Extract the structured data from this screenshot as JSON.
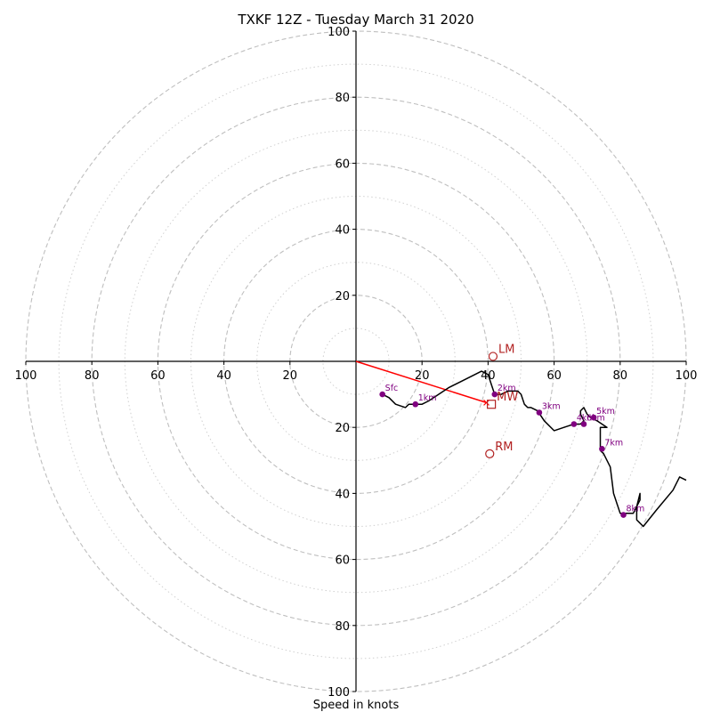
{
  "chart_data": {
    "type": "hodograph",
    "title": "TXKF 12Z - Tuesday March 31 2020",
    "xlabel": "Speed in knots",
    "range": [
      -100,
      100
    ],
    "ring_major": [
      20,
      40,
      60,
      80,
      100
    ],
    "ring_minor": [
      10,
      30,
      50,
      70,
      90
    ],
    "x_ticks": [
      {
        "value": -100,
        "label": "100"
      },
      {
        "value": -80,
        "label": "80"
      },
      {
        "value": -60,
        "label": "60"
      },
      {
        "value": -40,
        "label": "40"
      },
      {
        "value": -20,
        "label": "20"
      },
      {
        "value": 20,
        "label": "20"
      },
      {
        "value": 40,
        "label": "40"
      },
      {
        "value": 60,
        "label": "60"
      },
      {
        "value": 80,
        "label": "80"
      },
      {
        "value": 100,
        "label": "100"
      }
    ],
    "y_ticks": [
      {
        "value": 100,
        "label": "100"
      },
      {
        "value": 80,
        "label": "80"
      },
      {
        "value": 60,
        "label": "60"
      },
      {
        "value": 40,
        "label": "40"
      },
      {
        "value": 20,
        "label": "20"
      },
      {
        "value": -20,
        "label": "20"
      },
      {
        "value": -40,
        "label": "40"
      },
      {
        "value": -60,
        "label": "60"
      },
      {
        "value": -80,
        "label": "80"
      },
      {
        "value": -100,
        "label": "100"
      }
    ],
    "trace": [
      [
        8,
        -10
      ],
      [
        10,
        -11
      ],
      [
        12,
        -13
      ],
      [
        15,
        -14
      ],
      [
        16,
        -13
      ],
      [
        17,
        -13
      ],
      [
        18,
        -13
      ],
      [
        20,
        -13
      ],
      [
        22,
        -12
      ],
      [
        25,
        -10
      ],
      [
        28,
        -8
      ],
      [
        32,
        -6
      ],
      [
        36,
        -4
      ],
      [
        38,
        -3
      ],
      [
        40,
        -4
      ],
      [
        41,
        -7
      ],
      [
        42,
        -10
      ],
      [
        44,
        -10
      ],
      [
        46,
        -9
      ],
      [
        48,
        -9
      ],
      [
        49,
        -9
      ],
      [
        50,
        -10
      ],
      [
        51,
        -13
      ],
      [
        52,
        -14
      ],
      [
        53,
        -14
      ],
      [
        55,
        -15
      ],
      [
        57,
        -18
      ],
      [
        60,
        -21
      ],
      [
        63,
        -20
      ],
      [
        66,
        -19
      ],
      [
        68,
        -19
      ],
      [
        69,
        -18
      ],
      [
        68,
        -16
      ],
      [
        68,
        -15
      ],
      [
        69,
        -14
      ],
      [
        70,
        -16
      ],
      [
        71,
        -17
      ],
      [
        73,
        -18
      ],
      [
        76,
        -20
      ],
      [
        74,
        -20
      ],
      [
        74,
        -23
      ],
      [
        74,
        -27
      ],
      [
        75,
        -28
      ],
      [
        77,
        -32
      ],
      [
        78,
        -40
      ],
      [
        80,
        -46
      ],
      [
        84,
        -46
      ],
      [
        86,
        -42
      ],
      [
        86,
        -40
      ],
      [
        85,
        -44
      ],
      [
        85,
        -48
      ],
      [
        86,
        -49
      ],
      [
        87,
        -50
      ],
      [
        91,
        -45
      ],
      [
        96,
        -39
      ],
      [
        98,
        -35
      ],
      [
        100,
        -36
      ]
    ],
    "height_markers": [
      {
        "label": "Sfc",
        "u": 8,
        "v": -10
      },
      {
        "label": "1km",
        "u": 18,
        "v": -13
      },
      {
        "label": "2km",
        "u": 42,
        "v": -10
      },
      {
        "label": "3km",
        "u": 55.5,
        "v": -15.5
      },
      {
        "label": "4km",
        "u": 66,
        "v": -19
      },
      {
        "label": "5km",
        "u": 72,
        "v": -17
      },
      {
        "label": "6km",
        "u": 69,
        "v": -19
      },
      {
        "label": "7km",
        "u": 74.5,
        "v": -26.5
      },
      {
        "label": "8km",
        "u": 81,
        "v": -46.5
      }
    ],
    "motion_markers": [
      {
        "label": "LM",
        "u": 41.5,
        "v": 1.5,
        "shape": "circle"
      },
      {
        "label": "MW",
        "u": 41,
        "v": -13,
        "shape": "square"
      },
      {
        "label": "RM",
        "u": 40.5,
        "v": -28,
        "shape": "circle"
      }
    ],
    "shear_vector": {
      "from": [
        0,
        0
      ],
      "to": [
        39.5,
        -12.5
      ]
    },
    "colors": {
      "trace": "#000000",
      "height": "#800080",
      "motion": "#b22222",
      "shear": "#ff0000",
      "grid": "#bfbfbf"
    }
  }
}
